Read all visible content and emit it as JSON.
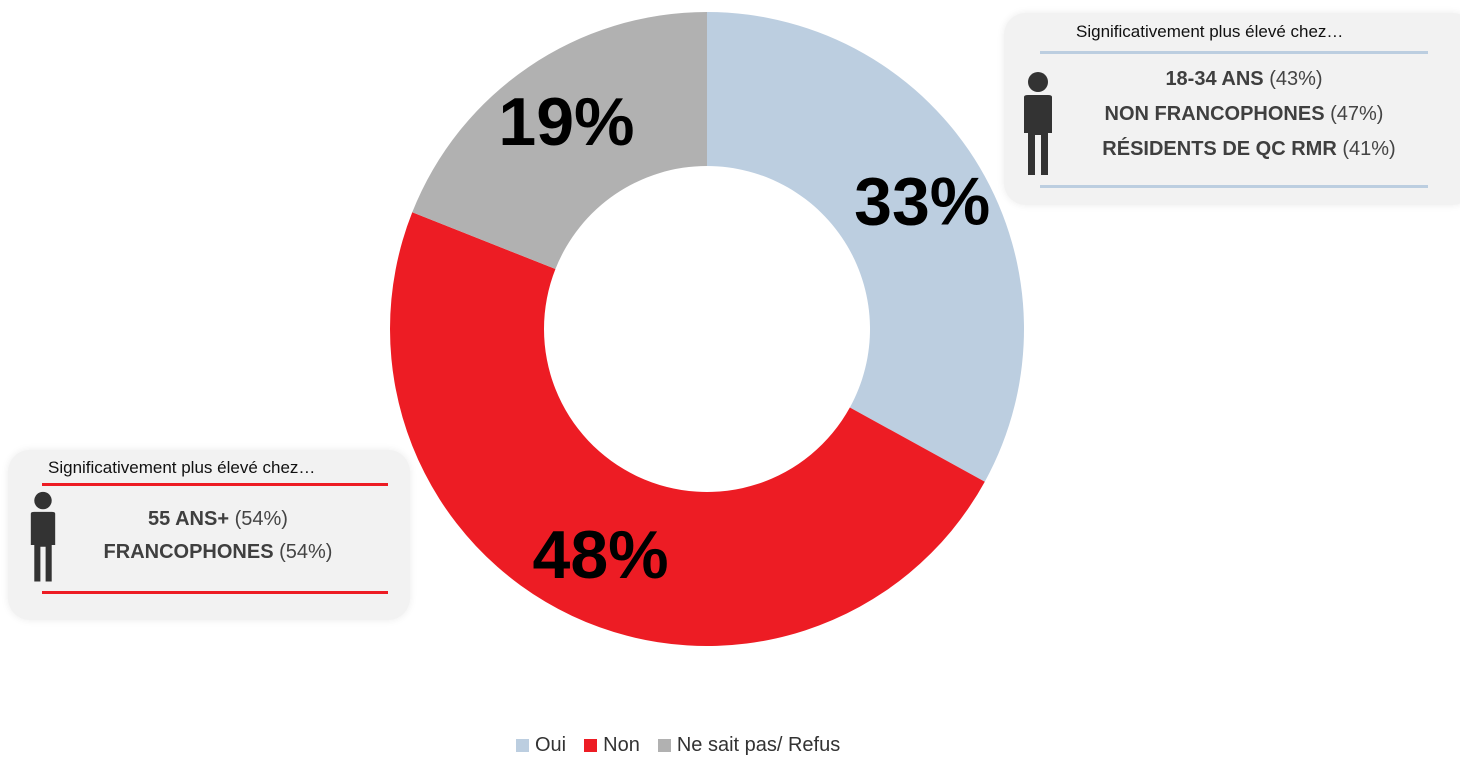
{
  "chart_data": {
    "type": "pie",
    "donut": true,
    "categories": [
      "Oui",
      "Non",
      "Ne sait pas/ Refus"
    ],
    "values": [
      33,
      48,
      19
    ],
    "labels": [
      "33%",
      "48%",
      "19%"
    ],
    "colors": [
      "#bccee0",
      "#ed1c24",
      "#b1b1b1"
    ],
    "legend_position": "bottom"
  },
  "callouts": {
    "oui": {
      "heading": "Significativement plus élevé chez…",
      "accent": "#bccee0",
      "items": [
        {
          "label": "18-34 ANS",
          "value": "(43%)"
        },
        {
          "label": "NON FRANCOPHONES",
          "value": "(47%)"
        },
        {
          "label": "RÉSIDENTS DE QC RMR",
          "value": "(41%)"
        }
      ]
    },
    "non": {
      "heading": "Significativement plus élevé chez…",
      "accent": "#ed1c24",
      "items": [
        {
          "label": "55 ANS+",
          "value": "(54%)"
        },
        {
          "label": "FRANCOPHONES",
          "value": "(54%)"
        }
      ]
    }
  },
  "icons": {
    "person": "person-icon"
  }
}
